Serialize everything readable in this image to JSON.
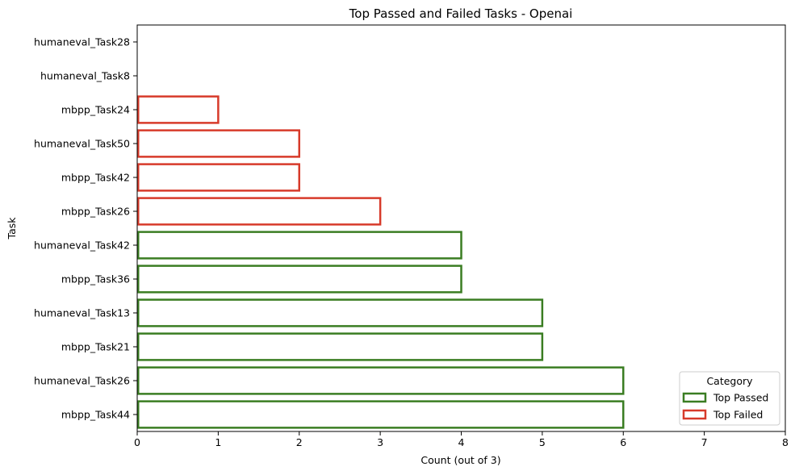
{
  "chart_data": {
    "type": "bar",
    "orientation": "horizontal",
    "title": "Top Passed and Failed Tasks - Openai",
    "xlabel": "Count (out of 3)",
    "ylabel": "Task",
    "xlim": [
      0,
      8
    ],
    "xticks": [
      0,
      1,
      2,
      3,
      4,
      5,
      6,
      7,
      8
    ],
    "grid": false,
    "bar_style": "outline",
    "categories": [
      "humaneval_Task28",
      "humaneval_Task8",
      "mbpp_Task24",
      "humaneval_Task50",
      "mbpp_Task42",
      "mbpp_Task26",
      "humaneval_Task42",
      "mbpp_Task36",
      "humaneval_Task13",
      "mbpp_Task21",
      "humaneval_Task26",
      "mbpp_Task44"
    ],
    "values": [
      0,
      0,
      1,
      2,
      2,
      3,
      4,
      4,
      5,
      5,
      6,
      6
    ],
    "bar_category": [
      "Top Failed",
      "Top Failed",
      "Top Failed",
      "Top Failed",
      "Top Failed",
      "Top Failed",
      "Top Passed",
      "Top Passed",
      "Top Passed",
      "Top Passed",
      "Top Passed",
      "Top Passed"
    ],
    "legend": {
      "title": "Category",
      "placement": "bottom-right",
      "entries": [
        {
          "name": "Top Passed",
          "color": "#3a7d22"
        },
        {
          "name": "Top Failed",
          "color": "#d73a2a"
        }
      ]
    },
    "colors": {
      "Top Passed": "#3a7d22",
      "Top Failed": "#d73a2a"
    }
  }
}
